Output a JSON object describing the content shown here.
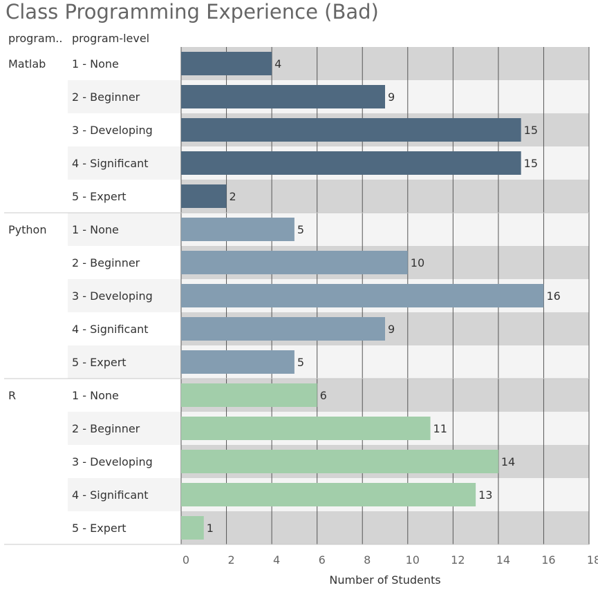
{
  "title": "Class Programming Experience (Bad)",
  "headers": {
    "program": "program..",
    "level": "program-level"
  },
  "chart_data": {
    "type": "bar",
    "orientation": "horizontal",
    "title": "Class Programming Experience (Bad)",
    "xlabel": "Number of Students",
    "xlim": [
      0,
      18
    ],
    "xticks": [
      0,
      2,
      4,
      6,
      8,
      10,
      12,
      14,
      16,
      18
    ],
    "grid": true,
    "groups": [
      {
        "name": "Matlab",
        "color": "#4f6980",
        "categories": [
          "1 - None",
          "2 - Beginner",
          "3 - Developing",
          "4 - Significant",
          "5 - Expert"
        ],
        "values": [
          4,
          9,
          15,
          15,
          2
        ]
      },
      {
        "name": "Python",
        "color": "#849db1",
        "categories": [
          "1 - None",
          "2 - Beginner",
          "3 - Developing",
          "4 - Significant",
          "5 - Expert"
        ],
        "values": [
          5,
          10,
          16,
          9,
          5
        ]
      },
      {
        "name": "R",
        "color": "#a2ceaa",
        "categories": [
          "1 - None",
          "2 - Beginner",
          "3 - Developing",
          "4 - Significant",
          "5 - Expert"
        ],
        "values": [
          6,
          11,
          14,
          13,
          1
        ]
      }
    ]
  }
}
